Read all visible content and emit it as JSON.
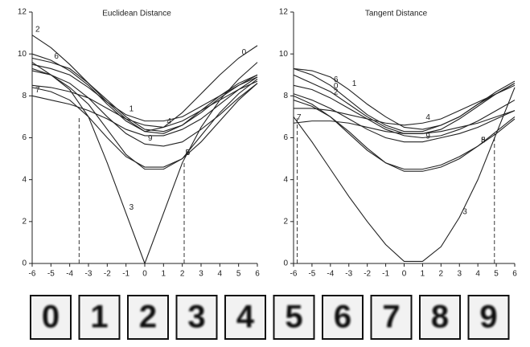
{
  "chart_data": [
    {
      "type": "line",
      "title": "Euclidean Distance",
      "line_color": "#222",
      "x": [
        -6,
        -5,
        -4,
        -3,
        -2,
        -1,
        0,
        1,
        2,
        3,
        4,
        5,
        6
      ],
      "xlim": [
        -6,
        6
      ],
      "xticks": [
        -6,
        -5,
        -4,
        -3,
        -2,
        -1,
        0,
        1,
        2,
        3,
        4,
        5,
        6
      ],
      "ylim": [
        0,
        12
      ],
      "yticks": [
        0,
        2,
        4,
        6,
        8,
        10,
        12
      ],
      "vlines": [
        -3.5,
        2.1
      ],
      "series": [
        {
          "name": "0",
          "values": [
            10.0,
            9.7,
            9.2,
            8.5,
            7.6,
            6.8,
            6.3,
            6.5,
            7.2,
            8.1,
            9.0,
            9.8,
            10.4
          ]
        },
        {
          "name": "1",
          "values": [
            9.5,
            9.3,
            9.0,
            8.4,
            7.7,
            7.1,
            6.8,
            6.8,
            7.0,
            7.5,
            8.0,
            8.5,
            8.9
          ]
        },
        {
          "name": "2",
          "values": [
            10.9,
            10.3,
            9.5,
            8.6,
            7.7,
            6.9,
            6.3,
            6.2,
            6.6,
            7.3,
            8.0,
            8.6,
            9.0
          ]
        },
        {
          "name": "3",
          "values": [
            9.6,
            9.0,
            8.3,
            7.0,
            4.8,
            2.4,
            0,
            2.4,
            4.8,
            6.5,
            7.8,
            8.8,
            9.6
          ]
        },
        {
          "name": "4",
          "values": [
            8.5,
            8.4,
            8.2,
            7.9,
            7.4,
            6.9,
            6.6,
            6.5,
            6.8,
            7.3,
            7.8,
            8.3,
            8.7
          ]
        },
        {
          "name": "5",
          "values": [
            8.4,
            8.2,
            7.8,
            7.0,
            6.0,
            5.1,
            4.6,
            4.6,
            5.0,
            5.8,
            6.8,
            7.8,
            8.6
          ]
        },
        {
          "name": "6",
          "values": [
            9.8,
            9.6,
            9.3,
            8.6,
            7.8,
            7.0,
            6.4,
            6.3,
            6.6,
            7.2,
            7.9,
            8.5,
            9.0
          ]
        },
        {
          "name": "7",
          "values": [
            8.0,
            7.8,
            7.6,
            7.3,
            6.9,
            6.4,
            6.1,
            6.1,
            6.4,
            6.9,
            7.6,
            8.3,
            8.9
          ]
        },
        {
          "name": "8",
          "values": [
            9.3,
            9.0,
            8.4,
            7.6,
            6.4,
            5.2,
            4.5,
            4.5,
            5.0,
            6.1,
            7.2,
            8.1,
            8.8
          ]
        },
        {
          "name": "9",
          "values": [
            9.2,
            9.0,
            8.6,
            7.9,
            7.0,
            6.2,
            5.7,
            5.6,
            5.8,
            6.4,
            7.1,
            7.9,
            8.6
          ]
        }
      ]
    },
    {
      "type": "line",
      "title": "Tangent Distance",
      "line_color": "#222",
      "x": [
        -6,
        -5,
        -4,
        -3,
        -2,
        -1,
        0,
        1,
        2,
        3,
        4,
        5,
        6
      ],
      "xlim": [
        -6,
        6
      ],
      "xticks": [
        -6,
        -5,
        -4,
        -3,
        -2,
        -1,
        0,
        1,
        2,
        3,
        4,
        5,
        6
      ],
      "ylim": [
        0,
        12
      ],
      "yticks": [
        0,
        2,
        4,
        6,
        8,
        10,
        12
      ],
      "vlines": [
        -5.8,
        4.9
      ],
      "series": [
        {
          "name": "0",
          "values": [
            9.0,
            8.6,
            8.2,
            7.6,
            7.0,
            6.5,
            6.2,
            6.2,
            6.4,
            6.9,
            7.5,
            8.1,
            8.6
          ]
        },
        {
          "name": "1",
          "values": [
            9.3,
            9.2,
            8.9,
            8.3,
            7.6,
            7.0,
            6.5,
            6.4,
            6.6,
            7.0,
            7.6,
            8.2,
            8.7
          ]
        },
        {
          "name": "2",
          "values": [
            8.5,
            8.3,
            7.9,
            7.4,
            6.9,
            6.4,
            6.1,
            6.0,
            6.1,
            6.4,
            6.8,
            7.3,
            7.8
          ]
        },
        {
          "name": "3",
          "values": [
            7.0,
            5.8,
            4.5,
            3.2,
            2.0,
            0.9,
            0.1,
            0.1,
            0.8,
            2.2,
            4.0,
            6.2,
            8.4
          ]
        },
        {
          "name": "4",
          "values": [
            7.4,
            7.4,
            7.3,
            7.1,
            6.9,
            6.7,
            6.6,
            6.7,
            6.9,
            7.3,
            7.7,
            8.1,
            8.5
          ]
        },
        {
          "name": "5",
          "values": [
            7.8,
            7.5,
            7.0,
            6.2,
            5.4,
            4.8,
            4.5,
            4.5,
            4.7,
            5.1,
            5.6,
            6.2,
            6.9
          ]
        },
        {
          "name": "6",
          "values": [
            9.3,
            9.0,
            8.5,
            7.8,
            7.1,
            6.6,
            6.3,
            6.3,
            6.6,
            7.0,
            7.6,
            8.1,
            8.6
          ]
        },
        {
          "name": "7",
          "values": [
            6.7,
            6.8,
            6.8,
            6.7,
            6.5,
            6.3,
            6.2,
            6.2,
            6.3,
            6.5,
            6.7,
            7.0,
            7.3
          ]
        },
        {
          "name": "8",
          "values": [
            8.0,
            7.6,
            7.0,
            6.3,
            5.5,
            4.8,
            4.4,
            4.4,
            4.6,
            5.0,
            5.6,
            6.3,
            7.0
          ]
        },
        {
          "name": "9",
          "values": [
            8.1,
            7.8,
            7.4,
            6.9,
            6.4,
            6.0,
            5.8,
            5.8,
            6.0,
            6.2,
            6.5,
            6.9,
            7.3
          ]
        }
      ]
    }
  ],
  "digit_images": [
    "0",
    "1",
    "2",
    "3",
    "4",
    "5",
    "6",
    "7",
    "8",
    "9"
  ]
}
